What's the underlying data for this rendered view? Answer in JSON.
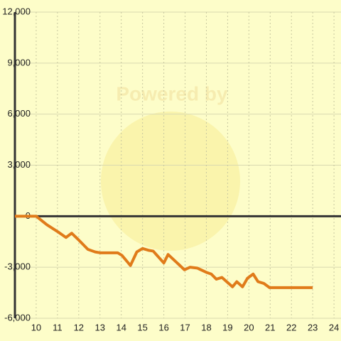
{
  "chart_data": {
    "type": "line",
    "watermark": "Powered by",
    "x": [
      9,
      10,
      10.5,
      11,
      11.4,
      11.67,
      12,
      12.43,
      12.77,
      13,
      13.83,
      14.03,
      14.43,
      14.73,
      15,
      15.27,
      15.5,
      16,
      16.2,
      16.5,
      16.97,
      17.23,
      17.57,
      18,
      18.23,
      18.47,
      18.73,
      19.23,
      19.43,
      19.7,
      19.93,
      20.2,
      20.43,
      20.7,
      20.97,
      23
    ],
    "series": [
      {
        "color": "#e07b1a",
        "values": [
          0,
          0,
          -500,
          -900,
          -1250,
          -1000,
          -1400,
          -1950,
          -2100,
          -2150,
          -2150,
          -2300,
          -2900,
          -2100,
          -1900,
          -2000,
          -2050,
          -2750,
          -2250,
          -2600,
          -3150,
          -3000,
          -3050,
          -3300,
          -3400,
          -3700,
          -3600,
          -4150,
          -3850,
          -4150,
          -3650,
          -3400,
          -3850,
          -3950,
          -4200,
          -4200
        ]
      }
    ],
    "xlim": [
      9,
      24.33
    ],
    "xticks": [
      10,
      11,
      12,
      13,
      14,
      15,
      16,
      17,
      18,
      19,
      20,
      21,
      22,
      23,
      24
    ],
    "ylim": [
      -6000,
      12000
    ],
    "yticks": [
      {
        "value": -6000,
        "label": "-6,000"
      },
      {
        "value": -3000,
        "label": "-3,000"
      },
      0,
      {
        "value": 3000,
        "label": "3,000"
      },
      {
        "value": 6000,
        "label": "6,000"
      },
      {
        "value": 9000,
        "label": "9,000"
      },
      {
        "value": 12000,
        "label": "12,000"
      }
    ],
    "grid": true
  }
}
